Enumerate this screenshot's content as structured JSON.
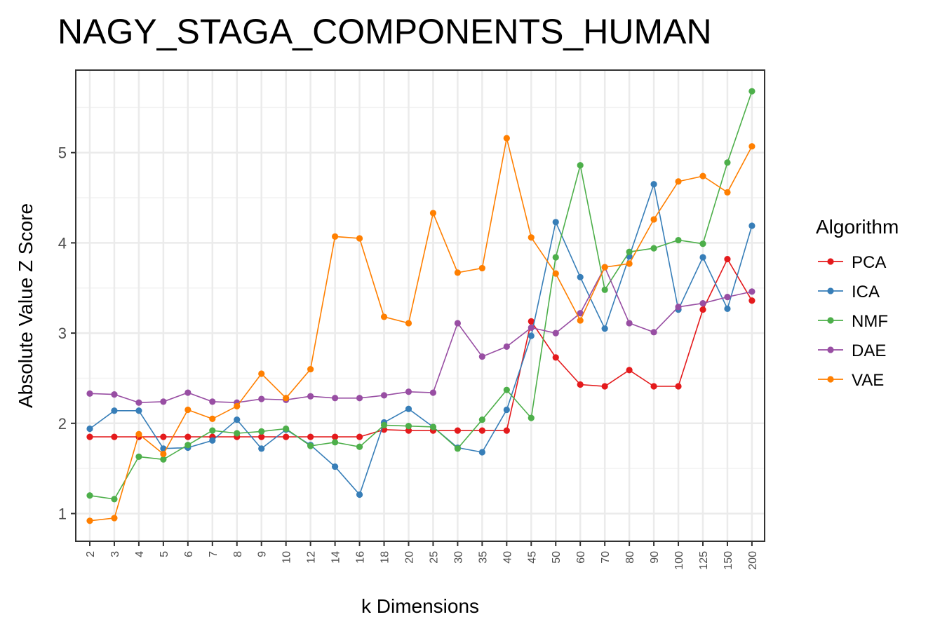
{
  "chart_data": {
    "type": "line",
    "title": "NAGY_STAGA_COMPONENTS_HUMAN",
    "xlabel": "k Dimensions",
    "ylabel": "Absolute Value Z Score",
    "x_scale": "categorical",
    "categories": [
      "2",
      "3",
      "4",
      "5",
      "6",
      "7",
      "8",
      "9",
      "10",
      "12",
      "14",
      "16",
      "18",
      "20",
      "25",
      "30",
      "35",
      "40",
      "45",
      "50",
      "60",
      "70",
      "80",
      "90",
      "100",
      "125",
      "150",
      "200"
    ],
    "yticks": [
      1,
      2,
      3,
      4,
      5
    ],
    "ylim": [
      0.7,
      5.9
    ],
    "grid": true,
    "legend_title": "Algorithm",
    "legend_position": "right",
    "series": [
      {
        "name": "PCA",
        "color": "#e41a1c",
        "values": [
          1.85,
          1.85,
          1.85,
          1.85,
          1.85,
          1.85,
          1.85,
          1.85,
          1.85,
          1.85,
          1.85,
          1.85,
          1.93,
          1.92,
          1.92,
          1.92,
          1.92,
          1.92,
          3.13,
          2.73,
          2.43,
          2.41,
          2.59,
          2.41,
          2.41,
          3.26,
          3.82,
          3.36
        ]
      },
      {
        "name": "ICA",
        "color": "#377eb8",
        "values": [
          1.94,
          2.14,
          2.14,
          1.72,
          1.73,
          1.81,
          2.04,
          1.72,
          1.93,
          1.76,
          1.52,
          1.21,
          2.01,
          2.16,
          1.96,
          1.73,
          1.68,
          2.15,
          2.97,
          4.23,
          3.62,
          3.05,
          3.85,
          4.65,
          3.26,
          3.84,
          3.27,
          4.19
        ]
      },
      {
        "name": "NMF",
        "color": "#4daf4a",
        "values": [
          1.2,
          1.16,
          1.63,
          1.6,
          1.76,
          1.92,
          1.89,
          1.91,
          1.94,
          1.75,
          1.79,
          1.74,
          1.98,
          1.97,
          1.96,
          1.72,
          2.04,
          2.37,
          2.06,
          3.84,
          4.86,
          3.48,
          3.9,
          3.94,
          4.03,
          3.99,
          4.89,
          5.68
        ]
      },
      {
        "name": "DAE",
        "color": "#984ea3",
        "values": [
          2.33,
          2.32,
          2.23,
          2.24,
          2.34,
          2.24,
          2.23,
          2.27,
          2.26,
          2.3,
          2.28,
          2.28,
          2.31,
          2.35,
          2.34,
          3.11,
          2.74,
          2.85,
          3.06,
          3.0,
          3.22,
          3.73,
          3.11,
          3.01,
          3.29,
          3.33,
          3.4,
          3.46
        ]
      },
      {
        "name": "VAE",
        "color": "#ff7f00",
        "values": [
          0.92,
          0.95,
          1.88,
          1.66,
          2.15,
          2.05,
          2.19,
          2.55,
          2.28,
          2.6,
          4.07,
          4.05,
          3.18,
          3.11,
          4.33,
          3.67,
          3.72,
          5.16,
          4.06,
          3.66,
          3.14,
          3.73,
          3.77,
          4.26,
          4.68,
          4.74,
          4.56,
          5.07
        ]
      }
    ]
  }
}
